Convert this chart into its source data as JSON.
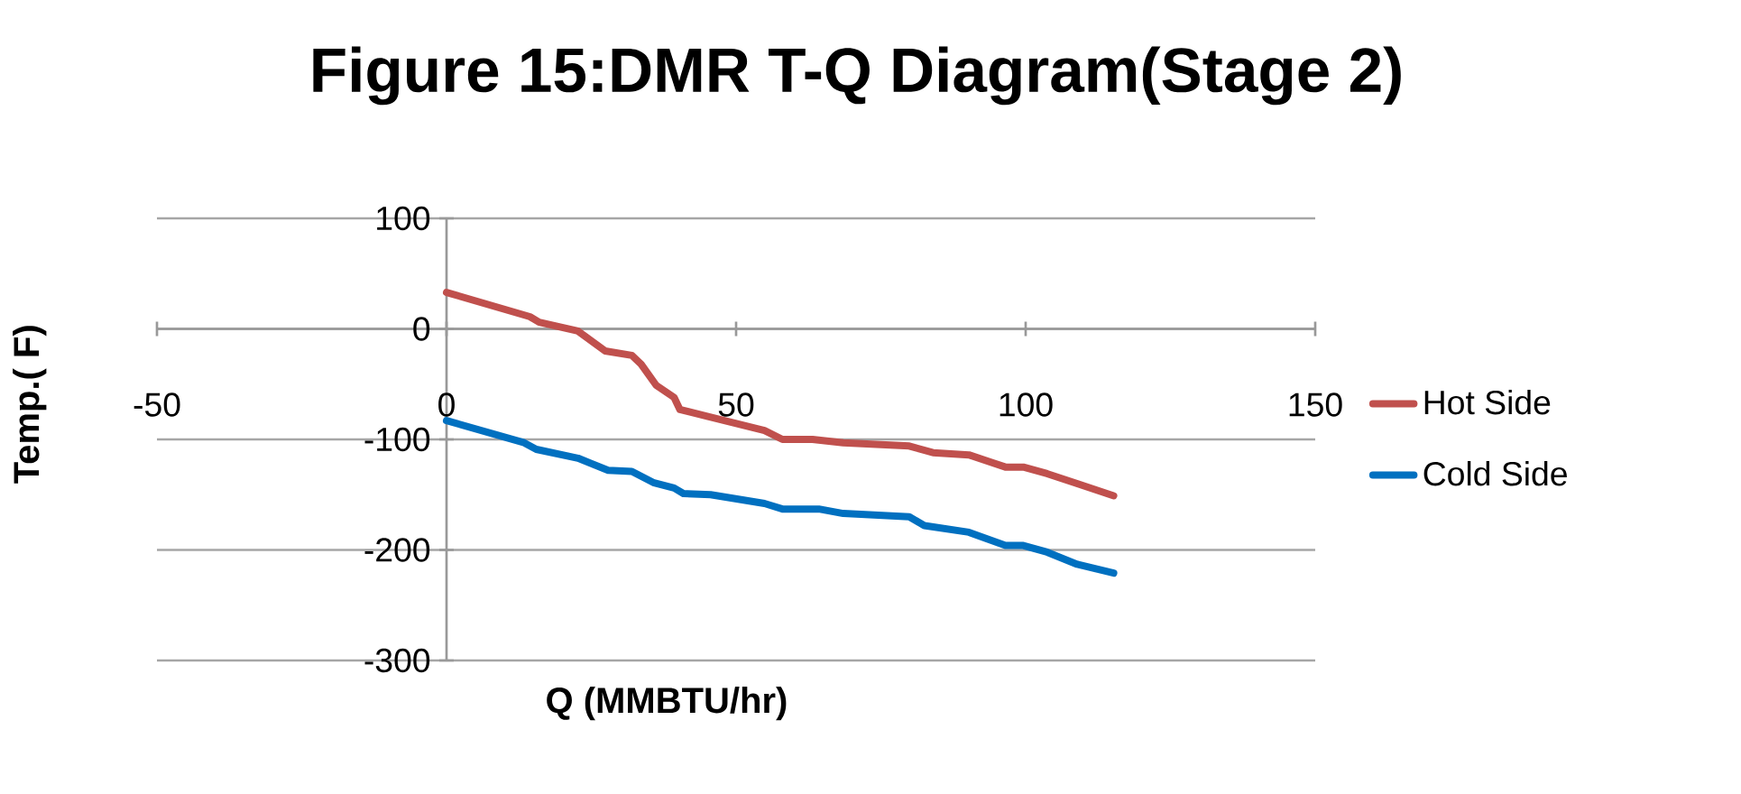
{
  "chart_data": {
    "type": "line",
    "title": "Figure 15:DMR T-Q Diagram(Stage 2)",
    "xlabel": "Q (MMBTU/hr)",
    "ylabel": "Temp.( F)",
    "xlim": [
      -50,
      150
    ],
    "xticks": [
      -50,
      0,
      50,
      100,
      150
    ],
    "ylim": [
      -300,
      100
    ],
    "yticks": [
      -300,
      -200,
      -100,
      0,
      100
    ],
    "grid": "y",
    "legend": "right",
    "marker": "none",
    "line_style": "solid",
    "series": [
      {
        "name": "Hot Side",
        "color": "#c0504d",
        "x": [
          0,
          14.4,
          16,
          22.7,
          27.4,
          32,
          33.6,
          36.2,
          39.3,
          40.3,
          45,
          54.9,
          58,
          63.2,
          68.5,
          79.9,
          84,
          90.2,
          96.5,
          99.6,
          103.7,
          108.9,
          115.2
        ],
        "values": [
          33,
          11,
          6,
          -2,
          -20,
          -24,
          -32,
          -51,
          -62,
          -73,
          -79,
          -92,
          -100,
          -100,
          -103,
          -106,
          -112,
          -114,
          -125,
          -125,
          -131,
          -140,
          -151
        ]
      },
      {
        "name": "Cold Side",
        "color": "#0070c0",
        "x": [
          0,
          13.4,
          15.5,
          22.7,
          27.9,
          32,
          35.7,
          39.3,
          40.9,
          45.6,
          54.9,
          58,
          64.3,
          68.5,
          79.9,
          82.5,
          90.2,
          96.5,
          99.6,
          103.7,
          108.9,
          115.2
        ],
        "values": [
          -83,
          -103,
          -109,
          -117,
          -128,
          -129,
          -139,
          -144,
          -149,
          -150,
          -158,
          -163,
          -163,
          -167,
          -170,
          -178,
          -184,
          -196,
          -196,
          -202,
          -213,
          -221
        ]
      }
    ]
  }
}
